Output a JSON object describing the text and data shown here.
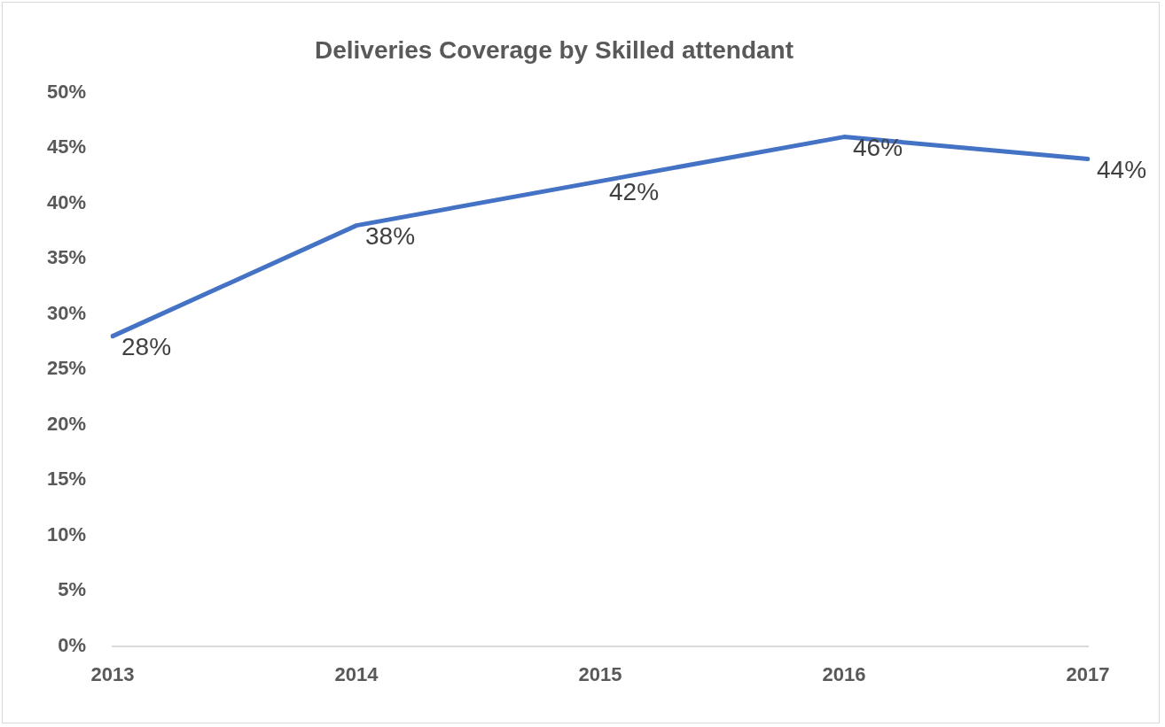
{
  "chart_data": {
    "type": "line",
    "title": "Deliveries Coverage by Skilled attendant",
    "categories": [
      "2013",
      "2014",
      "2015",
      "2016",
      "2017"
    ],
    "series": [
      {
        "color": "#4472c4",
        "values": [
          28,
          38,
          42,
          46,
          44
        ],
        "value_labels": [
          "28%",
          "38%",
          "42%",
          "46%",
          "44%"
        ]
      }
    ],
    "ylim": [
      0,
      50
    ],
    "yticks": [
      {
        "value": 0,
        "label": "0%"
      },
      {
        "value": 5,
        "label": "5%"
      },
      {
        "value": 10,
        "label": "10%"
      },
      {
        "value": 15,
        "label": "15%"
      },
      {
        "value": 20,
        "label": "20%"
      },
      {
        "value": 25,
        "label": "25%"
      },
      {
        "value": 30,
        "label": "30%"
      },
      {
        "value": 35,
        "label": "35%"
      },
      {
        "value": 40,
        "label": "40%"
      },
      {
        "value": 45,
        "label": "45%"
      },
      {
        "value": 50,
        "label": "50%"
      }
    ],
    "grid": false
  }
}
